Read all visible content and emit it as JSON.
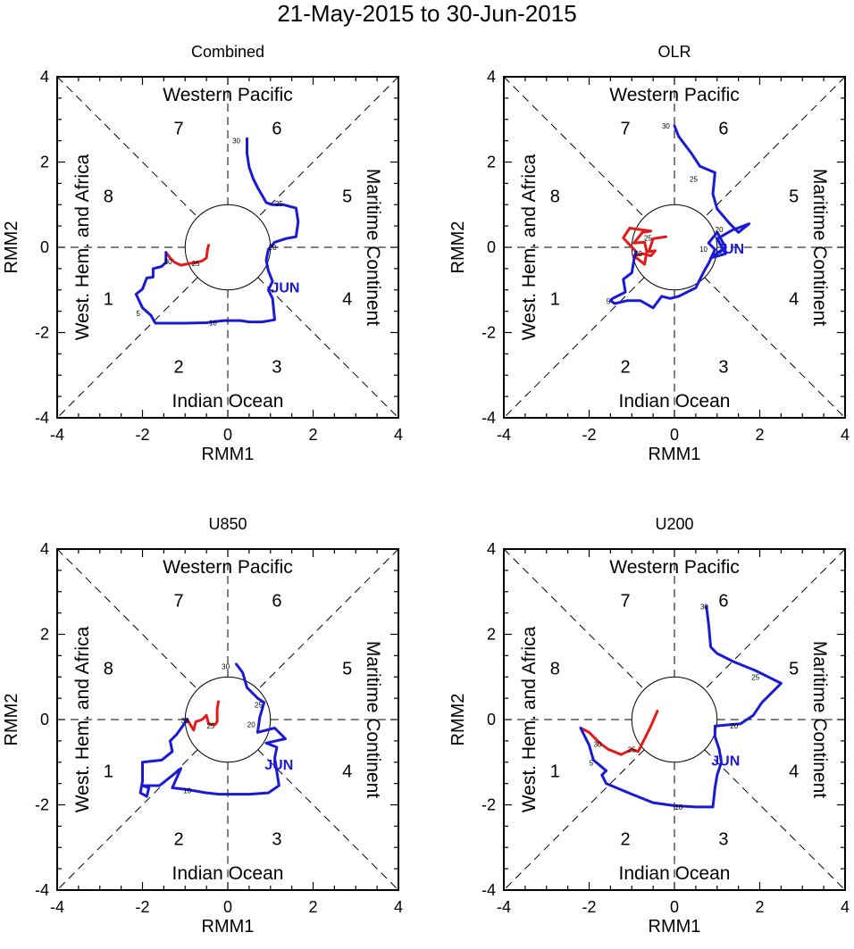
{
  "title": "21-May-2015 to 30-Jun-2015",
  "axes": {
    "xlabel": "RMM1",
    "ylabel": "RMM2",
    "range": [
      -4,
      4
    ],
    "ticks": [
      "-4",
      "-2",
      "0",
      "2",
      "4"
    ]
  },
  "region_labels": {
    "top": "Western Pacific",
    "bottom": "Indian Ocean",
    "left": "West. Hem. and Africa",
    "right": "Maritime Continent"
  },
  "phase_labels": [
    "1",
    "2",
    "3",
    "4",
    "5",
    "6",
    "7",
    "8"
  ],
  "month_label": "JUN",
  "colors": {
    "may": "#e21a1a",
    "jun": "#1a1ad6",
    "axis": "#000000"
  },
  "chart_data": [
    {
      "type": "line",
      "title": "Combined",
      "day_labels": [
        {
          "text": "5",
          "x": -2.1,
          "y": -1.55
        },
        {
          "text": "10",
          "x": -0.35,
          "y": -1.77
        },
        {
          "text": "20",
          "x": 1.05,
          "y": 0.0
        },
        {
          "text": "25",
          "x": 1.2,
          "y": 1.03
        },
        {
          "text": "30",
          "x": 0.2,
          "y": 2.5
        },
        {
          "text": "25",
          "x": -0.75,
          "y": -0.38
        },
        {
          "text": "30",
          "x": -1.4,
          "y": -0.33
        }
      ],
      "month_pos": {
        "x": 1.35,
        "y": -0.93
      },
      "series": [
        {
          "name": "May",
          "points": [
            [
              -0.45,
              0.05
            ],
            [
              -0.48,
              -0.08
            ],
            [
              -0.5,
              -0.25
            ],
            [
              -0.6,
              -0.32
            ],
            [
              -0.75,
              -0.36
            ],
            [
              -0.9,
              -0.38
            ],
            [
              -1.1,
              -0.42
            ],
            [
              -1.25,
              -0.35
            ],
            [
              -1.35,
              -0.25
            ],
            [
              -1.45,
              -0.12
            ]
          ]
        },
        {
          "name": "Jun",
          "points": [
            [
              -1.45,
              -0.12
            ],
            [
              -1.45,
              -0.35
            ],
            [
              -1.55,
              -0.45
            ],
            [
              -1.75,
              -0.5
            ],
            [
              -1.75,
              -0.7
            ],
            [
              -1.9,
              -0.72
            ],
            [
              -2.0,
              -0.98
            ],
            [
              -2.15,
              -1.1
            ],
            [
              -2.0,
              -1.42
            ],
            [
              -1.8,
              -1.6
            ],
            [
              -1.7,
              -1.78
            ],
            [
              -1.0,
              -1.78
            ],
            [
              -0.5,
              -1.77
            ],
            [
              -0.1,
              -1.72
            ],
            [
              0.3,
              -1.72
            ],
            [
              0.5,
              -1.75
            ],
            [
              0.8,
              -1.75
            ],
            [
              1.1,
              -1.7
            ],
            [
              1.05,
              -1.2
            ],
            [
              0.95,
              -1.0
            ],
            [
              1.05,
              -0.8
            ],
            [
              0.95,
              -0.55
            ],
            [
              0.9,
              -0.3
            ],
            [
              0.95,
              -0.05
            ],
            [
              1.1,
              0.12
            ],
            [
              1.35,
              0.2
            ],
            [
              1.6,
              0.25
            ],
            [
              1.65,
              0.6
            ],
            [
              1.6,
              0.92
            ],
            [
              1.3,
              1.0
            ],
            [
              1.05,
              1.0
            ],
            [
              0.9,
              1.05
            ],
            [
              0.7,
              1.4
            ],
            [
              0.6,
              1.6
            ],
            [
              0.5,
              1.88
            ],
            [
              0.45,
              2.2
            ],
            [
              0.45,
              2.55
            ]
          ]
        }
      ]
    },
    {
      "type": "line",
      "title": "OLR",
      "day_labels": [
        {
          "text": "5",
          "x": -1.55,
          "y": -1.27
        },
        {
          "text": "10",
          "x": 0.68,
          "y": -0.04
        },
        {
          "text": "20",
          "x": 1.05,
          "y": 0.42
        },
        {
          "text": "25",
          "x": 0.45,
          "y": 1.6
        },
        {
          "text": "30",
          "x": -0.2,
          "y": 2.85
        },
        {
          "text": "25",
          "x": -0.62,
          "y": 0.22
        },
        {
          "text": "30",
          "x": -0.85,
          "y": -0.15
        }
      ],
      "month_pos": {
        "x": 1.3,
        "y": -0.02
      },
      "series": [
        {
          "name": "May",
          "points": [
            [
              -0.2,
              0.25
            ],
            [
              -0.5,
              0.2
            ],
            [
              -0.6,
              -0.1
            ],
            [
              -0.45,
              -0.08
            ],
            [
              -0.55,
              -0.2
            ],
            [
              -0.75,
              -0.15
            ],
            [
              -0.95,
              -0.2
            ],
            [
              -0.7,
              -0.4
            ],
            [
              -0.65,
              -0.1
            ],
            [
              -0.7,
              0.12
            ],
            [
              -0.95,
              0.1
            ],
            [
              -0.75,
              0.35
            ],
            [
              -0.55,
              0.38
            ],
            [
              -1.05,
              0.45
            ],
            [
              -1.2,
              0.22
            ],
            [
              -0.9,
              -0.1
            ]
          ]
        },
        {
          "name": "Jun",
          "points": [
            [
              -0.9,
              -0.1
            ],
            [
              -0.95,
              -0.3
            ],
            [
              -1.0,
              -0.6
            ],
            [
              -1.2,
              -0.75
            ],
            [
              -1.15,
              -1.05
            ],
            [
              -1.45,
              -1.2
            ],
            [
              -1.5,
              -1.25
            ],
            [
              -1.4,
              -1.32
            ],
            [
              -1.1,
              -1.25
            ],
            [
              -0.8,
              -1.25
            ],
            [
              -0.5,
              -1.42
            ],
            [
              -0.3,
              -1.15
            ],
            [
              -0.1,
              -1.2
            ],
            [
              0.1,
              -1.15
            ],
            [
              0.3,
              -1.05
            ],
            [
              0.5,
              -0.95
            ],
            [
              0.6,
              -0.75
            ],
            [
              0.7,
              -0.55
            ],
            [
              0.8,
              -0.38
            ],
            [
              0.95,
              -0.05
            ],
            [
              0.8,
              0.1
            ],
            [
              1.0,
              0.35
            ],
            [
              1.2,
              0.0
            ],
            [
              0.85,
              -0.25
            ],
            [
              1.2,
              -0.15
            ],
            [
              1.0,
              0.2
            ],
            [
              1.35,
              0.4
            ],
            [
              1.75,
              0.55
            ],
            [
              1.5,
              0.35
            ],
            [
              1.3,
              0.55
            ],
            [
              1.0,
              0.9
            ],
            [
              0.9,
              1.25
            ],
            [
              0.95,
              1.75
            ],
            [
              0.6,
              1.9
            ],
            [
              0.4,
              2.2
            ],
            [
              0.25,
              2.4
            ],
            [
              0.1,
              2.6
            ],
            [
              0.0,
              2.85
            ]
          ]
        }
      ]
    },
    {
      "type": "line",
      "title": "U850",
      "day_labels": [
        {
          "text": "10",
          "x": -0.95,
          "y": -1.67
        },
        {
          "text": "20",
          "x": 0.55,
          "y": -0.12
        },
        {
          "text": "25",
          "x": 0.72,
          "y": 0.35
        },
        {
          "text": "30",
          "x": -0.05,
          "y": 1.25
        },
        {
          "text": "25",
          "x": -0.4,
          "y": -0.15
        },
        {
          "text": "30",
          "x": -1.0,
          "y": -0.02
        }
      ],
      "month_pos": {
        "x": 1.2,
        "y": -1.05
      },
      "series": [
        {
          "name": "May",
          "points": [
            [
              -0.22,
              0.42
            ],
            [
              -0.25,
              0.25
            ],
            [
              -0.25,
              -0.05
            ],
            [
              -0.3,
              -0.12
            ],
            [
              -0.45,
              -0.1
            ],
            [
              -0.5,
              0.1
            ],
            [
              -0.6,
              0.0
            ],
            [
              -0.75,
              -0.05
            ],
            [
              -0.8,
              -0.25
            ],
            [
              -0.95,
              0.0
            ]
          ]
        },
        {
          "name": "Jun",
          "points": [
            [
              -0.95,
              0.0
            ],
            [
              -1.2,
              -0.35
            ],
            [
              -1.35,
              -0.5
            ],
            [
              -1.3,
              -0.75
            ],
            [
              -1.55,
              -0.95
            ],
            [
              -2.0,
              -1.0
            ],
            [
              -2.0,
              -1.45
            ],
            [
              -2.05,
              -1.72
            ],
            [
              -1.9,
              -1.8
            ],
            [
              -1.85,
              -1.6
            ],
            [
              -2.0,
              -1.55
            ],
            [
              -1.6,
              -1.55
            ],
            [
              -1.1,
              -1.15
            ],
            [
              -1.3,
              -1.6
            ],
            [
              -0.9,
              -1.65
            ],
            [
              -0.5,
              -1.72
            ],
            [
              -0.2,
              -1.75
            ],
            [
              0.5,
              -1.75
            ],
            [
              0.95,
              -1.72
            ],
            [
              1.2,
              -1.55
            ],
            [
              1.1,
              -0.9
            ],
            [
              1.15,
              -0.65
            ],
            [
              0.9,
              -0.55
            ],
            [
              1.35,
              -0.45
            ],
            [
              1.1,
              -0.2
            ],
            [
              0.7,
              -0.3
            ],
            [
              0.75,
              0.05
            ],
            [
              0.85,
              0.4
            ],
            [
              0.7,
              0.5
            ],
            [
              0.45,
              0.75
            ],
            [
              0.35,
              1.1
            ],
            [
              0.2,
              1.3
            ]
          ]
        }
      ]
    },
    {
      "type": "line",
      "title": "U200",
      "day_labels": [
        {
          "text": "5",
          "x": -1.95,
          "y": -1.02
        },
        {
          "text": "10",
          "x": 0.1,
          "y": -2.05
        },
        {
          "text": "20",
          "x": 1.4,
          "y": -0.15
        },
        {
          "text": "25",
          "x": 1.9,
          "y": 1.0
        },
        {
          "text": "30",
          "x": 0.7,
          "y": 2.65
        },
        {
          "text": "25",
          "x": -1.0,
          "y": -0.7
        },
        {
          "text": "30",
          "x": -1.8,
          "y": -0.58
        }
      ],
      "month_pos": {
        "x": 1.2,
        "y": -0.95
      },
      "series": [
        {
          "name": "May",
          "points": [
            [
              -0.4,
              0.2
            ],
            [
              -0.55,
              -0.15
            ],
            [
              -0.7,
              -0.45
            ],
            [
              -0.85,
              -0.75
            ],
            [
              -1.0,
              -0.7
            ],
            [
              -1.25,
              -0.82
            ],
            [
              -1.55,
              -0.7
            ],
            [
              -1.75,
              -0.55
            ],
            [
              -2.0,
              -0.3
            ],
            [
              -2.2,
              -0.2
            ]
          ]
        },
        {
          "name": "Jun",
          "points": [
            [
              -2.2,
              -0.2
            ],
            [
              -2.0,
              -0.6
            ],
            [
              -1.9,
              -0.95
            ],
            [
              -1.6,
              -1.2
            ],
            [
              -1.7,
              -1.3
            ],
            [
              -1.6,
              -1.5
            ],
            [
              -1.0,
              -1.75
            ],
            [
              -0.5,
              -1.95
            ],
            [
              0.0,
              -2.02
            ],
            [
              0.5,
              -2.05
            ],
            [
              0.9,
              -2.05
            ],
            [
              0.95,
              -1.6
            ],
            [
              1.0,
              -1.3
            ],
            [
              1.1,
              -1.0
            ],
            [
              1.05,
              -0.7
            ],
            [
              0.95,
              -0.4
            ],
            [
              0.95,
              -0.15
            ],
            [
              1.3,
              -0.12
            ],
            [
              1.55,
              -0.1
            ],
            [
              1.85,
              0.1
            ],
            [
              2.05,
              0.4
            ],
            [
              2.5,
              0.85
            ],
            [
              1.9,
              1.15
            ],
            [
              1.4,
              1.35
            ],
            [
              1.0,
              1.55
            ],
            [
              0.85,
              1.7
            ],
            [
              0.8,
              2.25
            ],
            [
              0.75,
              2.65
            ]
          ]
        }
      ]
    }
  ]
}
